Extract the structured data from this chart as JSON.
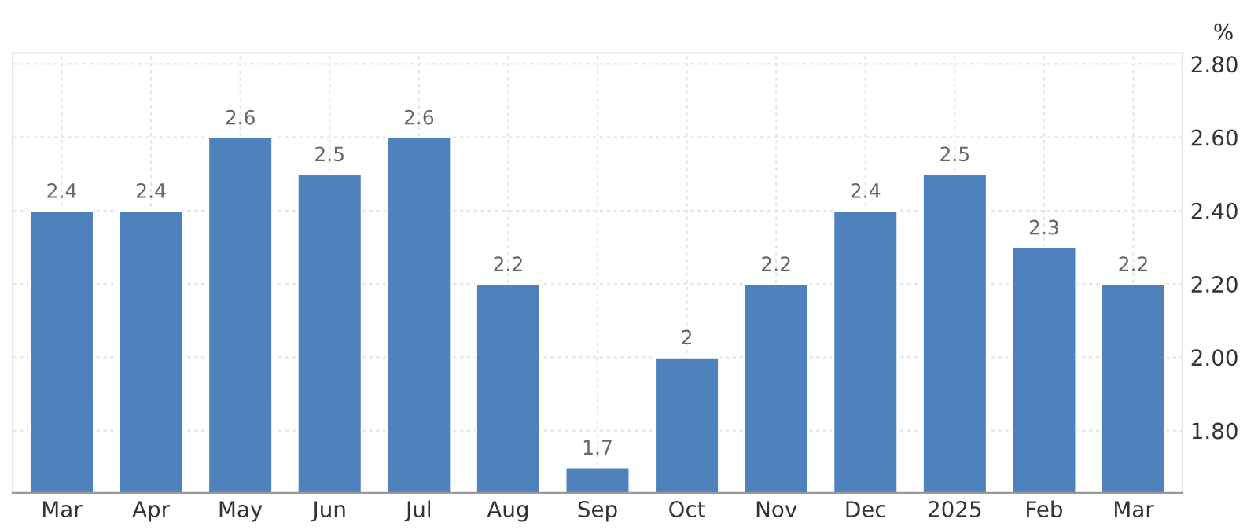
{
  "chart_data": {
    "type": "bar",
    "ylabel": "%",
    "categories": [
      "Mar",
      "Apr",
      "May",
      "Jun",
      "Jul",
      "Aug",
      "Sep",
      "Oct",
      "Nov",
      "Dec",
      "2025",
      "Feb",
      "Mar"
    ],
    "values": [
      2.4,
      2.4,
      2.6,
      2.5,
      2.6,
      2.2,
      1.7,
      2,
      2.2,
      2.4,
      2.5,
      2.3,
      2.2
    ],
    "color": "#4f81bd",
    "ylim": [
      1.63,
      2.83
    ],
    "yticks": [
      {
        "value": 1.8,
        "label": "1.80"
      },
      {
        "value": 2.0,
        "label": "2.00"
      },
      {
        "value": 2.2,
        "label": "2.20"
      },
      {
        "value": 2.4,
        "label": "2.40"
      },
      {
        "value": 2.6,
        "label": "2.60"
      },
      {
        "value": 2.8,
        "label": "2.80"
      }
    ],
    "grid": true,
    "data_labels": true
  }
}
